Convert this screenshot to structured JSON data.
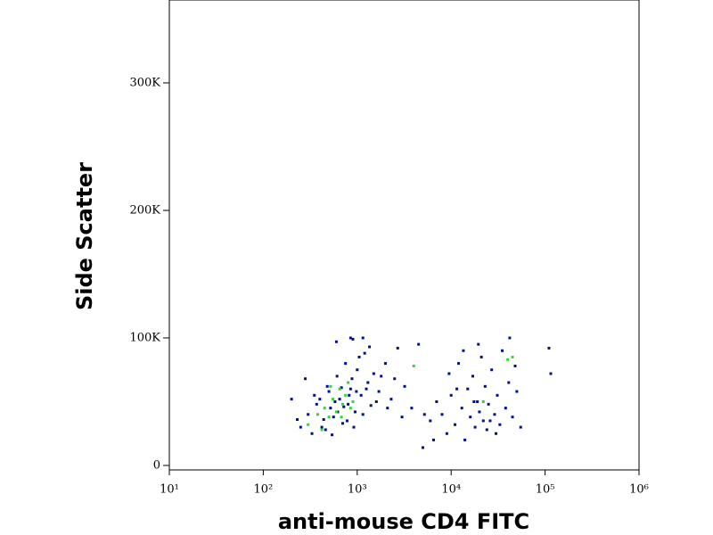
{
  "chart_data": {
    "type": "scatter",
    "xlabel": "anti-mouse CD4 FITC",
    "ylabel": "Side Scatter",
    "xscale": "log",
    "xlim": [
      10,
      1000000
    ],
    "ylim": [
      -3500,
      365000
    ],
    "xticks": [
      {
        "value": 10,
        "label": "10¹"
      },
      {
        "value": 100,
        "label": "10²"
      },
      {
        "value": 1000,
        "label": "10³"
      },
      {
        "value": 10000,
        "label": "10⁴"
      },
      {
        "value": 100000,
        "label": "10⁵"
      },
      {
        "value": 1000000,
        "label": "10⁶"
      }
    ],
    "yticks": [
      0,
      {
        "value": 100000,
        "label": "100K"
      },
      {
        "value": 200000,
        "label": "200K"
      },
      {
        "value": 300000,
        "label": "300K"
      }
    ],
    "series": [
      {
        "color": "#00108c",
        "x": [
          300,
          350,
          420,
          480,
          520,
          560,
          610,
          650,
          700,
          750,
          800,
          850,
          900,
          950,
          1000,
          1100,
          1200,
          1300,
          1400,
          1500,
          1700,
          2000,
          2300,
          2700,
          3200,
          3800,
          250,
          280,
          330,
          370,
          400,
          440,
          460,
          500,
          540,
          580,
          620,
          680,
          720,
          780,
          820,
          880,
          920,
          980,
          1050,
          1150,
          1250,
          1350,
          1600,
          1800,
          2100,
          2500,
          3000,
          4500,
          5200,
          600,
          850,
          1150,
          200,
          230,
          8000,
          9000,
          10000,
          11000,
          12000,
          13000,
          14000,
          15000,
          16000,
          17000,
          18000,
          19000,
          20000,
          21000,
          22000,
          23000,
          24000,
          25000,
          27000,
          29000,
          31000,
          33000,
          35000,
          38000,
          41000,
          45000,
          50000,
          55000,
          7000,
          6000,
          6500,
          9500,
          11500,
          13500,
          17500,
          19500,
          26000,
          30000,
          42000,
          48000,
          110000,
          115000,
          5000
        ],
        "values": [
          40000,
          55000,
          30000,
          62000,
          45000,
          38000,
          70000,
          52000,
          33000,
          80000,
          48000,
          60000,
          99000,
          42000,
          75000,
          55000,
          88000,
          65000,
          47000,
          72000,
          58000,
          80000,
          52000,
          92000,
          62000,
          45000,
          30000,
          68000,
          25000,
          48000,
          52000,
          36000,
          28000,
          58000,
          24000,
          50000,
          42000,
          61000,
          46000,
          35000,
          55000,
          68000,
          30000,
          58000,
          85000,
          40000,
          60000,
          93000,
          50000,
          70000,
          45000,
          68000,
          38000,
          95000,
          40000,
          97000,
          100000,
          100000,
          52000,
          36000,
          40000,
          25000,
          55000,
          32000,
          80000,
          45000,
          20000,
          60000,
          38000,
          70000,
          30000,
          50000,
          42000,
          85000,
          35000,
          62000,
          28000,
          48000,
          75000,
          40000,
          55000,
          32000,
          90000,
          45000,
          65000,
          38000,
          58000,
          30000,
          50000,
          35000,
          20000,
          72000,
          60000,
          90000,
          50000,
          95000,
          35000,
          25000,
          100000,
          78000,
          92000,
          72000,
          14000
        ]
      },
      {
        "color": "#33d633",
        "x": [
          300,
          380,
          450,
          500,
          550,
          600,
          650,
          700,
          750,
          800,
          850,
          420,
          520,
          680,
          900,
          40000,
          45000,
          22000,
          4000
        ],
        "values": [
          32000,
          40000,
          45000,
          38000,
          52000,
          42000,
          60000,
          48000,
          55000,
          65000,
          45000,
          28000,
          62000,
          38000,
          50000,
          83000,
          85000,
          50000,
          78000
        ]
      }
    ]
  }
}
